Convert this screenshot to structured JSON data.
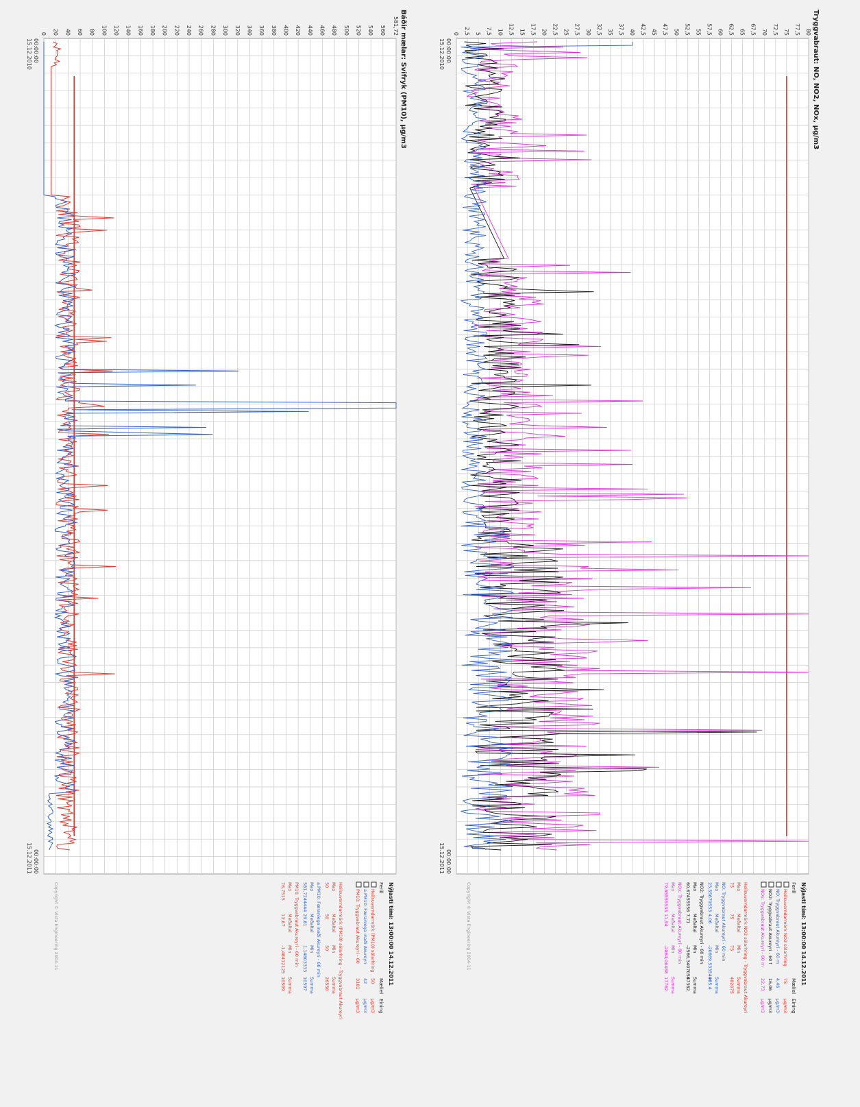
{
  "colors": {
    "blue": "#2f5fd6",
    "red": "#e8372c",
    "black": "#111111",
    "magenta": "#e12ee0",
    "grid": "#c8c8c8",
    "panel_bg": "#ffffff",
    "page_bg": "#f1f1f1"
  },
  "chart_data": [
    {
      "type": "line",
      "title": "Báðir mælar: Svifryk (PM10), µg/m3",
      "y_axis_ticks": [
        "0",
        "20",
        "40",
        "60",
        "80",
        "100",
        "120",
        "140",
        "160",
        "180",
        "200",
        "220",
        "240",
        "260",
        "280",
        "300",
        "320",
        "340",
        "360",
        "380",
        "400",
        "420",
        "440",
        "460",
        "480",
        "500",
        "520",
        "540",
        "560",
        "581,72"
      ],
      "ylim": [
        0,
        581.72
      ],
      "x_tick_labels": [
        {
          "time": "00:00:00",
          "date": "15.12.2010"
        },
        {
          "time": "00:00:00",
          "date": "15.12.2011"
        }
      ],
      "xlim": [
        "2010-12-15",
        "2011-12-15"
      ],
      "limit_line": 50,
      "series": [
        {
          "name": "Heilsuverndarmörk (PM10) sólarhring",
          "color": "red"
        },
        {
          "name": "a.PM10: Færanlega inaði Akureyri",
          "color": "blue"
        },
        {
          "name": "PM10: Tryggvabraut Akureyri",
          "color": "red"
        }
      ],
      "legend": {
        "heading": "Nýjasti tími: 13:00:00 14.12.2011",
        "columns": [
          "Ferill",
          "Mæliel",
          "Eining"
        ],
        "rows": [
          {
            "label": "Heilsuverndarmörk (PM10) sólarhring",
            "value": "50",
            "unit": "µg/m3",
            "color": "red"
          },
          {
            "label": "a.PM10: Færanlega inaði Akureyri",
            "value": "42",
            "unit": "µg/m3",
            "color": "blue"
          },
          {
            "label": "PM10: Tryggvabraut Akureyri - 60",
            "value": "3181",
            "unit": "µg/m3",
            "color": "red"
          }
        ]
      },
      "stats": [
        {
          "title": "Heilsuverndarmörk (PM10) sólarhring - Tryggvabraut Akureyri",
          "color": "red",
          "headers": [
            "Max",
            "Meðaltal",
            "Min",
            "Summa"
          ],
          "values": [
            "50",
            "50",
            "50",
            "26550"
          ]
        },
        {
          "title": "a.PM10: Færanlega inaði Akureyri - 60 min",
          "color": "blue",
          "headers": [
            "Max",
            "Meðaltal",
            "Min",
            "Summa"
          ],
          "values": [
            "581,7244444",
            "29,81",
            "1,14803333",
            "10597"
          ]
        },
        {
          "title": "PM10: Tryggvabraut Akureyri - 60 min",
          "color": "red",
          "headers": [
            "Max",
            "Meðaltal",
            "Min",
            "Summa"
          ],
          "values": [
            "76,7515",
            "13,67",
            "-1,48412125",
            "10509"
          ]
        }
      ],
      "copyright": "Copyright © Vista Engineering 2004-11"
    },
    {
      "type": "line",
      "title": "Tryggvabraut: NO, NO2, NOx, µg/m3",
      "y_axis_ticks": [
        "0",
        "2,5",
        "5",
        "7,5",
        "10",
        "12,5",
        "15",
        "17,5",
        "20",
        "22,5",
        "25",
        "27,5",
        "30",
        "32,5",
        "35",
        "37,5",
        "40",
        "42,5",
        "45",
        "47,5",
        "50",
        "52,5",
        "55",
        "57,5",
        "60",
        "62,5",
        "65",
        "67,5",
        "70",
        "72,5",
        "75",
        "77,5",
        "80"
      ],
      "ylim": [
        0,
        80
      ],
      "x_tick_labels": [
        {
          "time": "00:00:00",
          "date": "15.12.2010"
        },
        {
          "time": "00:00:00",
          "date": "15.12.2011"
        }
      ],
      "xlim": [
        "2010-12-15",
        "2011-12-15"
      ],
      "limit_line": 75,
      "series": [
        {
          "name": "Heilsuverndarmörk NO2 sólarhring",
          "color": "red"
        },
        {
          "name": "NO: Tryggvabraut Akureyri",
          "color": "blue"
        },
        {
          "name": "NO2: Tryggvabraut Akureyri",
          "color": "black"
        },
        {
          "name": "NOx: Tryggvabraut Akureyri",
          "color": "magenta"
        }
      ],
      "legend": {
        "heading": "Nýjasti tími: 13:00:00 14.12.2011",
        "columns": [
          "Ferill",
          "Mæliel",
          "Eining"
        ],
        "rows": [
          {
            "label": "Heilsuverndarmörk NO2 sólarhring",
            "value": "75",
            "unit": "µg/m3",
            "color": "red"
          },
          {
            "label": "NO: Tryggvabraut Akureyri - 60 m",
            "value": "4,46",
            "unit": "µg/m3",
            "color": "blue"
          },
          {
            "label": "NO2: Tryggvabraut Akureyri - 60 f",
            "value": "16,06",
            "unit": "µg/m3",
            "color": "black"
          },
          {
            "label": "NOx: Tryggvabraut Akureyri - 60 m",
            "value": "22,73",
            "unit": "µg/m3",
            "color": "magenta"
          }
        ]
      },
      "stats": [
        {
          "title": "Heilsuverndarmörk NO2 sólarhring - Tryggvabraut Akureyri",
          "color": "red",
          "headers": [
            "Max",
            "Meðaltal",
            "Min",
            "Summa"
          ],
          "values": [
            "75",
            "75",
            "75",
            "482075"
          ]
        },
        {
          "title": "NO: Tryggvabraut Akureyri - 60 min",
          "color": "blue",
          "headers": [
            "Max",
            "Meðaltal",
            "Min",
            "Summa"
          ],
          "values": [
            "25,55679553",
            "4,06",
            "-20669,5335446",
            "965,4"
          ]
        },
        {
          "title": "NO2: Tryggvabraut Akureyri - 60 min",
          "color": "black",
          "headers": [
            "Max",
            "Meðaltal",
            "Min",
            "Summa"
          ],
          "values": [
            "60,67455556",
            "7,71",
            "-2566,3407056",
            "47382"
          ]
        },
        {
          "title": "NOx: Tryggvabraut Akureyri - 60 min",
          "color": "magenta",
          "headers": [
            "Max",
            "Meðaltal",
            "Min",
            "Summa"
          ],
          "values": [
            "79,85555533",
            "11,54",
            "-2864,06488",
            "17762"
          ]
        }
      ],
      "copyright": "Copyright © Vista Engineering 2004-11"
    }
  ]
}
